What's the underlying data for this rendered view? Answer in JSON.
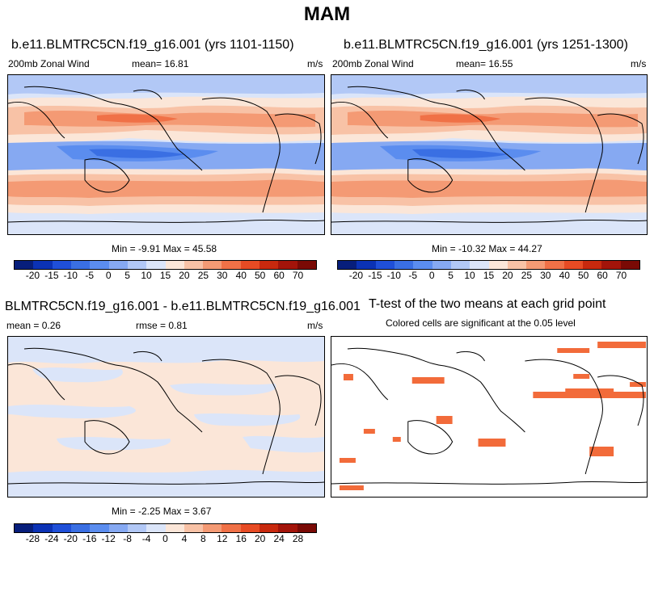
{
  "page_title": "MAM",
  "panel1": {
    "title": "b.e11.BLMTRC5CN.f19_g16.001 (yrs 1101-1150)",
    "left_label": "200mb Zonal Wind",
    "mean_label": "mean=  16.81",
    "units": "m/s",
    "minmax": "Min =  -9.91 Max =  45.58"
  },
  "panel2": {
    "title": "b.e11.BLMTRC5CN.f19_g16.001 (yrs 1251-1300)",
    "left_label": "200mb Zonal Wind",
    "mean_label": "mean=  16.55",
    "units": "m/s",
    "minmax": "Min = -10.32 Max =  44.27"
  },
  "panel3": {
    "title": "BLMTRC5CN.f19_g16.001 - b.e11.BLMTRC5CN.f19_g16.001",
    "mean_label": "mean =   0.26",
    "rmse_label": "rmse =   0.81",
    "units": "m/s",
    "minmax": "Min =  -2.25 Max =   3.67"
  },
  "panel4": {
    "title": "T-test of the two means at each grid point",
    "subtitle": "Colored cells are significant at the 0.05 level",
    "significant_color": "#f26b3a"
  },
  "colorbar_wind": {
    "labels": [
      "-20",
      "-15",
      "-10",
      "-5",
      "0",
      "5",
      "10",
      "15",
      "20",
      "25",
      "30",
      "40",
      "50",
      "60",
      "70"
    ],
    "colors": [
      "#071e7b",
      "#0b32b5",
      "#1f4fd8",
      "#3a6fe3",
      "#5b8def",
      "#86a9f2",
      "#b2c8f6",
      "#dbe5f9",
      "#fbe6d8",
      "#f8c2a6",
      "#f49a74",
      "#f07147",
      "#e74b24",
      "#c8290e",
      "#a3140a",
      "#7a0a05"
    ]
  },
  "colorbar_diff": {
    "labels": [
      "-28",
      "-24",
      "-20",
      "-16",
      "-12",
      "-8",
      "-4",
      "0",
      "4",
      "8",
      "12",
      "16",
      "20",
      "24",
      "28"
    ],
    "colors": [
      "#071e7b",
      "#0b32b5",
      "#1f4fd8",
      "#3a6fe3",
      "#5b8def",
      "#86a9f2",
      "#b2c8f6",
      "#dbe5f9",
      "#fbe6d8",
      "#f8c2a6",
      "#f49a74",
      "#f07147",
      "#e74b24",
      "#c8290e",
      "#a3140a",
      "#7a0a05"
    ]
  }
}
